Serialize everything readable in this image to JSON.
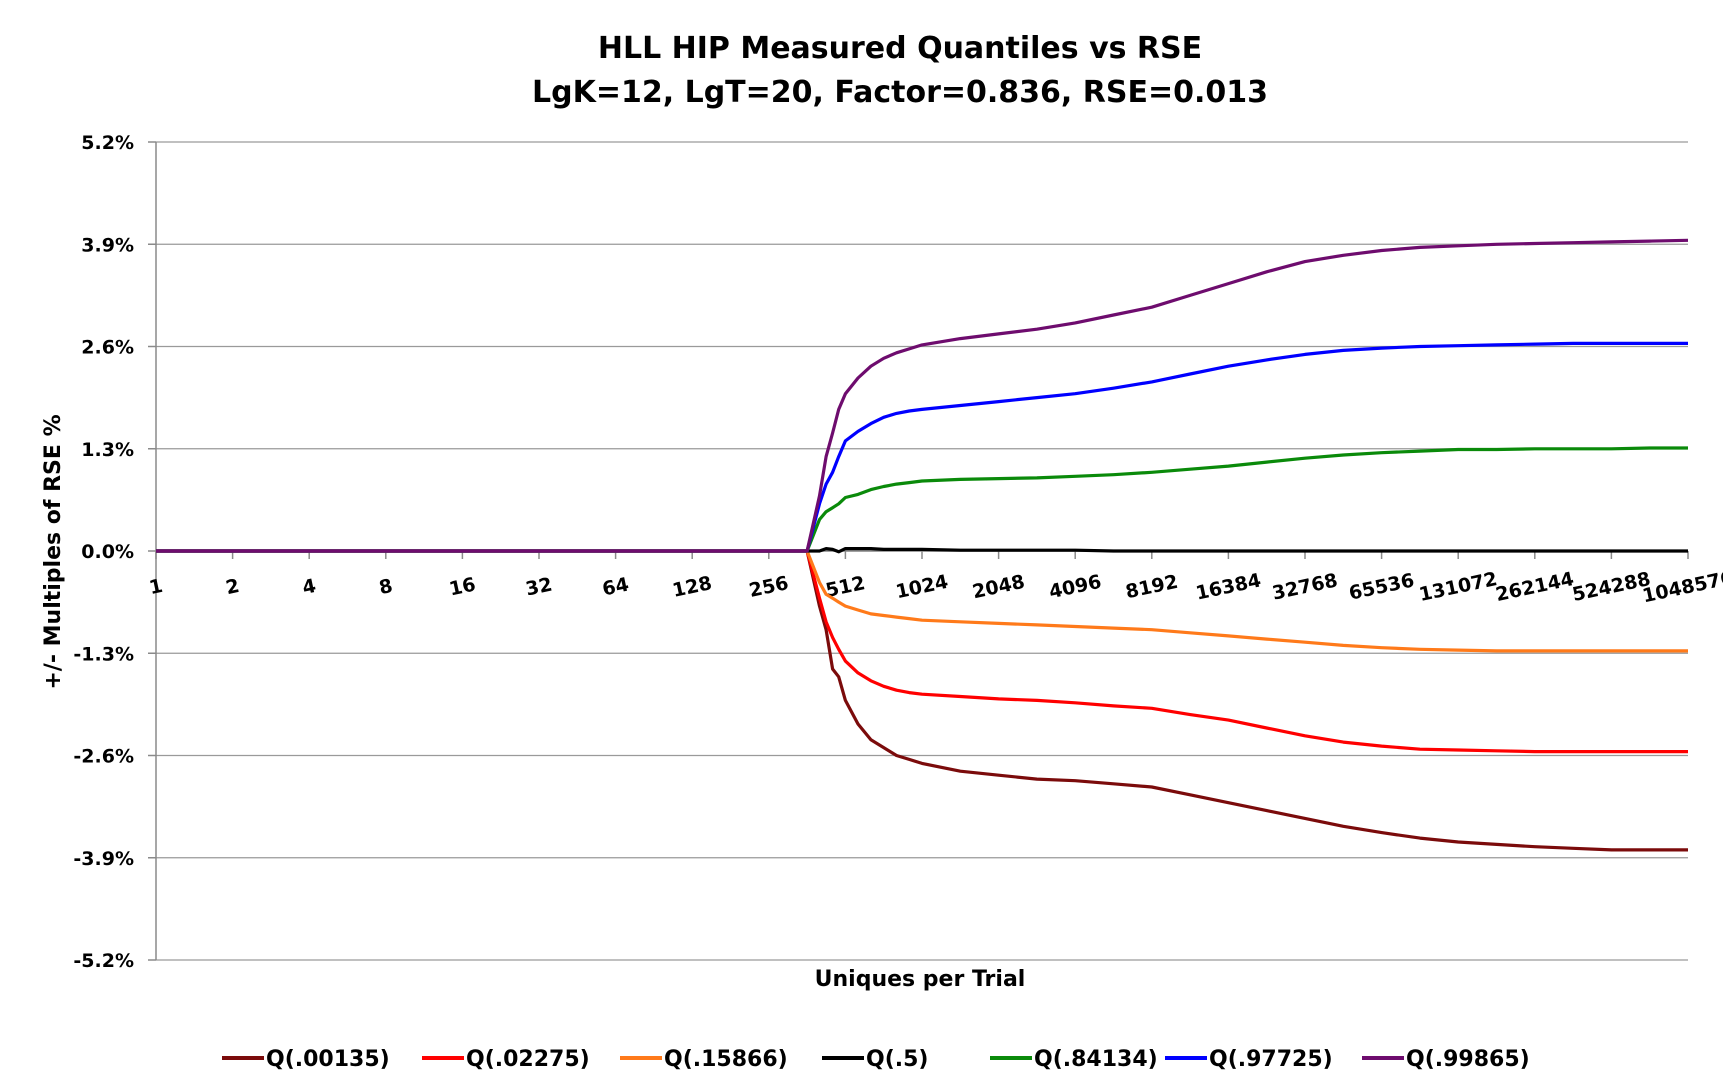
{
  "chart_data": {
    "type": "line",
    "title_line1": "HLL HIP Measured Quantiles vs RSE",
    "title_line2": "LgK=12, LgT=20, Factor=0.836, RSE=0.013",
    "xlabel": "Uniques per Trial",
    "ylabel": "+/-  Multiples of RSE %",
    "y_ticks": [
      "5.2%",
      "3.9%",
      "2.6%",
      "1.3%",
      "0.0%",
      "-1.3%",
      "-2.6%",
      "-3.9%",
      "-5.2%"
    ],
    "ylim": [
      -5.2,
      5.2
    ],
    "x_scale": "log2",
    "x_ticks": [
      "1",
      "2",
      "4",
      "8",
      "16",
      "32",
      "64",
      "128",
      "256",
      "512",
      "1024",
      "2048",
      "4096",
      "8192",
      "16384",
      "32768",
      "65536",
      "131072",
      "262144",
      "524288",
      "1048576"
    ],
    "x": [
      1,
      2,
      4,
      8,
      16,
      32,
      64,
      128,
      256,
      362,
      405,
      430,
      456,
      482,
      512,
      574,
      645,
      724,
      813,
      912,
      1024,
      1448,
      2048,
      2896,
      4096,
      5793,
      8192,
      11585,
      16384,
      23170,
      32768,
      46341,
      65536,
      92682,
      131072,
      185364,
      262144,
      370728,
      524288,
      741455,
      1048576
    ],
    "legend_position": "bottom",
    "grid": true,
    "series": [
      {
        "name": "Q(.00135)",
        "color": "#7b0b0b",
        "values": [
          0,
          0,
          0,
          0,
          0,
          0,
          0,
          0,
          0,
          0,
          -0.7,
          -1.0,
          -1.5,
          -1.6,
          -1.9,
          -2.2,
          -2.4,
          -2.5,
          -2.6,
          -2.65,
          -2.7,
          -2.8,
          -2.85,
          -2.9,
          -2.92,
          -2.96,
          -3.0,
          -3.1,
          -3.2,
          -3.3,
          -3.4,
          -3.5,
          -3.58,
          -3.65,
          -3.7,
          -3.73,
          -3.76,
          -3.78,
          -3.8,
          -3.8,
          -3.8
        ]
      },
      {
        "name": "Q(.02275)",
        "color": "#ff0000",
        "values": [
          0,
          0,
          0,
          0,
          0,
          0,
          0,
          0,
          0,
          0,
          -0.6,
          -0.9,
          -1.1,
          -1.25,
          -1.4,
          -1.55,
          -1.65,
          -1.72,
          -1.77,
          -1.8,
          -1.82,
          -1.85,
          -1.88,
          -1.9,
          -1.93,
          -1.97,
          -2.0,
          -2.08,
          -2.15,
          -2.25,
          -2.35,
          -2.43,
          -2.48,
          -2.52,
          -2.53,
          -2.54,
          -2.55,
          -2.55,
          -2.55,
          -2.55,
          -2.55
        ]
      },
      {
        "name": "Q(.15866)",
        "color": "#ff7a1a",
        "values": [
          0,
          0,
          0,
          0,
          0,
          0,
          0,
          0,
          0,
          0,
          -0.4,
          -0.55,
          -0.6,
          -0.65,
          -0.7,
          -0.75,
          -0.8,
          -0.82,
          -0.84,
          -0.86,
          -0.88,
          -0.9,
          -0.92,
          -0.94,
          -0.96,
          -0.98,
          -1.0,
          -1.04,
          -1.08,
          -1.12,
          -1.16,
          -1.2,
          -1.23,
          -1.25,
          -1.26,
          -1.27,
          -1.27,
          -1.27,
          -1.27,
          -1.27,
          -1.27
        ]
      },
      {
        "name": "Q(.5)",
        "color": "#000000",
        "values": [
          0,
          0,
          0,
          0,
          0,
          0,
          0,
          0,
          0,
          0,
          0,
          0.03,
          0.02,
          -0.01,
          0.03,
          0.03,
          0.03,
          0.02,
          0.02,
          0.02,
          0.02,
          0.01,
          0.01,
          0.01,
          0.01,
          0.0,
          0.0,
          0.0,
          0.0,
          0.0,
          0.0,
          0.0,
          0.0,
          0.0,
          0.0,
          0.0,
          0.0,
          0.0,
          0.0,
          0.0,
          0.0
        ]
      },
      {
        "name": "Q(.84134)",
        "color": "#0a8a0a",
        "values": [
          0,
          0,
          0,
          0,
          0,
          0,
          0,
          0,
          0,
          0,
          0.4,
          0.5,
          0.55,
          0.6,
          0.68,
          0.72,
          0.78,
          0.82,
          0.85,
          0.87,
          0.89,
          0.91,
          0.92,
          0.93,
          0.95,
          0.97,
          1.0,
          1.04,
          1.08,
          1.13,
          1.18,
          1.22,
          1.25,
          1.27,
          1.29,
          1.29,
          1.3,
          1.3,
          1.3,
          1.31,
          1.31
        ]
      },
      {
        "name": "Q(.97725)",
        "color": "#0000ff",
        "values": [
          0,
          0,
          0,
          0,
          0,
          0,
          0,
          0,
          0,
          0,
          0.6,
          0.85,
          1.0,
          1.2,
          1.4,
          1.52,
          1.62,
          1.7,
          1.75,
          1.78,
          1.8,
          1.85,
          1.9,
          1.95,
          2.0,
          2.07,
          2.15,
          2.25,
          2.35,
          2.43,
          2.5,
          2.55,
          2.58,
          2.6,
          2.61,
          2.62,
          2.63,
          2.64,
          2.64,
          2.64,
          2.64
        ]
      },
      {
        "name": "Q(.99865)",
        "color": "#6e0c6e",
        "values": [
          0,
          0,
          0,
          0,
          0,
          0,
          0,
          0,
          0,
          0,
          0.7,
          1.2,
          1.5,
          1.8,
          2.0,
          2.2,
          2.35,
          2.45,
          2.52,
          2.57,
          2.62,
          2.7,
          2.76,
          2.82,
          2.9,
          3.0,
          3.1,
          3.25,
          3.4,
          3.55,
          3.68,
          3.76,
          3.82,
          3.86,
          3.88,
          3.9,
          3.91,
          3.92,
          3.93,
          3.94,
          3.95
        ]
      }
    ]
  }
}
